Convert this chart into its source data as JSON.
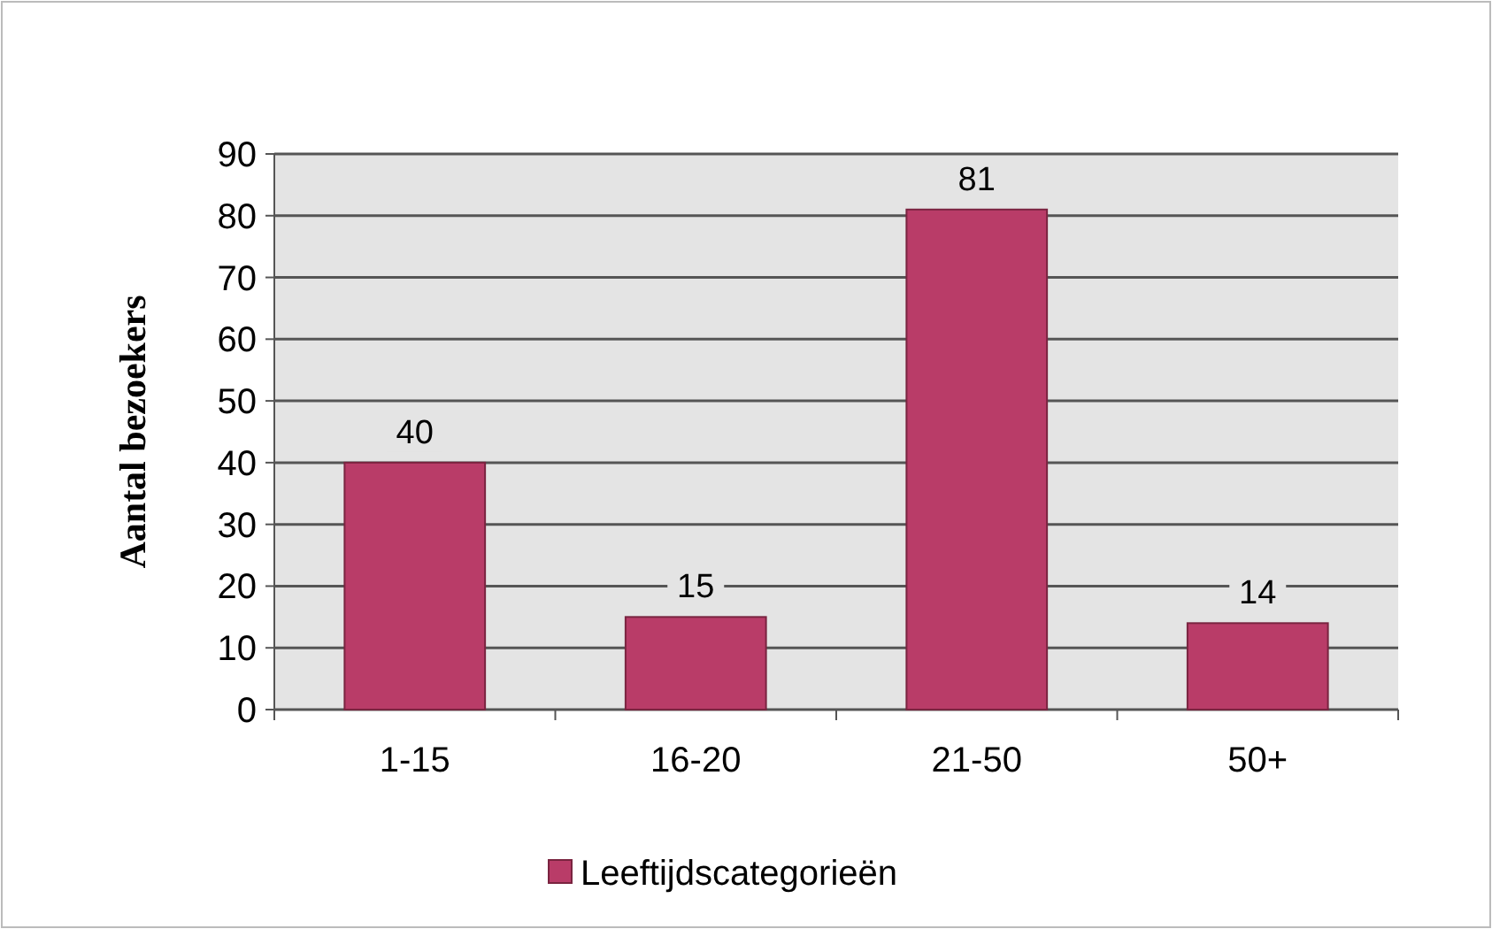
{
  "chart_data": {
    "type": "bar",
    "ylabel": "Aantal bezoekers",
    "categories": [
      "1-15",
      "16-20",
      "21-50",
      "50+"
    ],
    "series": [
      {
        "name": "Leeftijdscategorieën",
        "color": "#b93c68",
        "values": [
          40,
          15,
          81,
          14
        ]
      }
    ],
    "ylim": [
      0,
      90
    ],
    "yticks": [
      0,
      10,
      20,
      30,
      40,
      50,
      60,
      70,
      80,
      90
    ],
    "grid": "y",
    "legend": "bottom",
    "data_labels": true
  }
}
